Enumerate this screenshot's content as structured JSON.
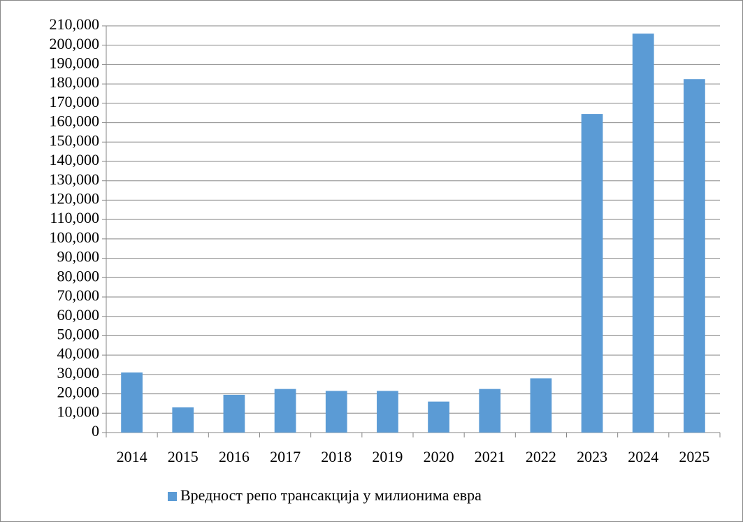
{
  "chart_data": {
    "type": "bar",
    "categories": [
      "2014",
      "2015",
      "2016",
      "2017",
      "2018",
      "2019",
      "2020",
      "2021",
      "2022",
      "2023",
      "2024",
      "2025"
    ],
    "series": [
      {
        "name": "Вредност репо трансакција у милионима евра",
        "color": "#5b9bd5",
        "values": [
          31000,
          13000,
          19500,
          22500,
          21500,
          21500,
          16000,
          22500,
          28000,
          164500,
          206000,
          182500
        ]
      }
    ],
    "ylim": [
      0,
      210000
    ],
    "yticks": [
      0,
      {
        "value": 10000,
        "label": "10,000"
      },
      {
        "value": 20000,
        "label": "20,000"
      },
      {
        "value": 30000,
        "label": "30,000"
      },
      {
        "value": 40000,
        "label": "40,000"
      },
      {
        "value": 50000,
        "label": "50,000"
      },
      {
        "value": 60000,
        "label": "60,000"
      },
      {
        "value": 70000,
        "label": "70,000"
      },
      {
        "value": 80000,
        "label": "80,000"
      },
      {
        "value": 90000,
        "label": "90,000"
      },
      {
        "value": 100000,
        "label": "100,000"
      },
      {
        "value": 110000,
        "label": "110,000"
      },
      {
        "value": 120000,
        "label": "120,000"
      },
      {
        "value": 130000,
        "label": "130,000"
      },
      {
        "value": 140000,
        "label": "140,000"
      },
      {
        "value": 150000,
        "label": "150,000"
      },
      {
        "value": 160000,
        "label": "160,000"
      },
      {
        "value": 170000,
        "label": "170,000"
      },
      {
        "value": 180000,
        "label": "180,000"
      },
      {
        "value": 190000,
        "label": "190,000"
      },
      {
        "value": 200000,
        "label": "200,000"
      },
      {
        "value": 210000,
        "label": "210,000"
      }
    ],
    "grid": true,
    "legend": "bottom"
  }
}
